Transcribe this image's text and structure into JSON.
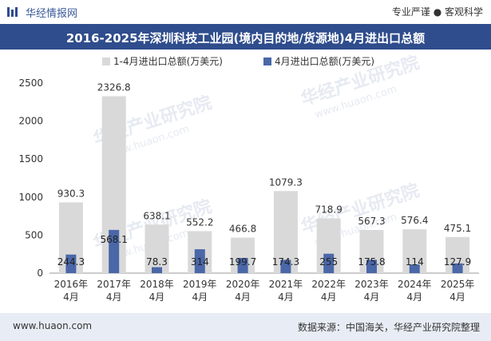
{
  "header": {
    "brand": "华经情报网",
    "tagline": "专业严谨 ● 客观科学"
  },
  "title": "2016-2025年深圳科技工业园(境内目的地/货源地)4月进出口总额",
  "footer": {
    "website": "www.huaon.com",
    "source": "数据来源：中国海关，华经产业研究院整理"
  },
  "watermark": "华经产业研究院",
  "watermark_url": "www.huaon.com",
  "chart_data": {
    "type": "bar",
    "categories": [
      "2016年\n4月",
      "2017年\n4月",
      "2018年\n4月",
      "2019年\n4月",
      "2020年\n4月",
      "2021年\n4月",
      "2022年\n4月",
      "2023年\n4月",
      "2024年\n4月",
      "2025年\n4月"
    ],
    "series": [
      {
        "name": "1-4月进出口总额(万美元)",
        "color": "#d9d9d9",
        "values": [
          930.3,
          2326.8,
          638.1,
          552.2,
          466.8,
          1079.3,
          718.9,
          567.3,
          576.4,
          475.1
        ],
        "labels": [
          "930.3",
          "2326.8",
          "638.1",
          "552.2",
          "466.8",
          "1079.3",
          "718.9",
          "567.3",
          "576.4",
          "475.1"
        ]
      },
      {
        "name": "4月进出口总额(万美元)",
        "color": "#4a67a8",
        "values": [
          244.3,
          568.1,
          78.3,
          314,
          199.7,
          174.3,
          255,
          175.8,
          114,
          127.9
        ],
        "labels": [
          "244.3",
          "568.1",
          "78.3",
          "314",
          "199.7",
          "174.3",
          "255",
          "175.8",
          "114",
          "127.9"
        ]
      }
    ],
    "yticks": [
      "0",
      "500",
      "1000",
      "1500",
      "2000",
      "2500"
    ],
    "ylim": [
      0,
      2500
    ],
    "legend": "top"
  }
}
